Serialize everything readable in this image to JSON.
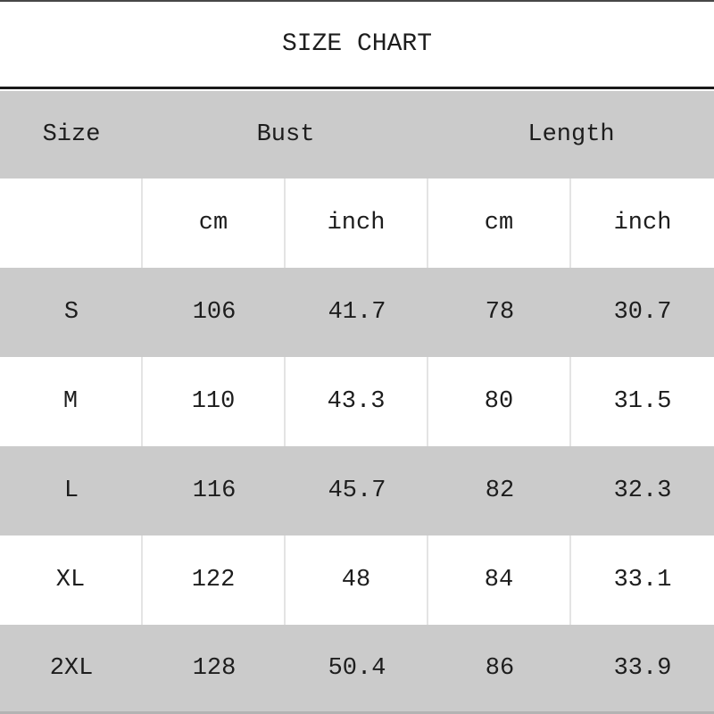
{
  "title": "SIZE CHART",
  "table": {
    "group_headers": {
      "size": "Size",
      "bust": "Bust",
      "length": "Length"
    },
    "unit_row": [
      "",
      "cm",
      "inch",
      "cm",
      "inch"
    ],
    "rows": [
      {
        "size": "S",
        "bust_cm": "106",
        "bust_inch": "41.7",
        "length_cm": "78",
        "length_inch": "30.7"
      },
      {
        "size": "M",
        "bust_cm": "110",
        "bust_inch": "43.3",
        "length_cm": "80",
        "length_inch": "31.5"
      },
      {
        "size": "L",
        "bust_cm": "116",
        "bust_inch": "45.7",
        "length_cm": "82",
        "length_inch": "32.3"
      },
      {
        "size": "XL",
        "bust_cm": "122",
        "bust_inch": "48",
        "length_cm": "84",
        "length_inch": "33.1"
      },
      {
        "size": "2XL",
        "bust_cm": "128",
        "bust_inch": "50.4",
        "length_cm": "86",
        "length_inch": "33.9"
      }
    ]
  },
  "chart_data": {
    "type": "table",
    "title": "SIZE CHART",
    "columns": [
      "Size",
      "Bust cm",
      "Bust inch",
      "Length cm",
      "Length inch"
    ],
    "rows": [
      [
        "S",
        106,
        41.7,
        78,
        30.7
      ],
      [
        "M",
        110,
        43.3,
        80,
        31.5
      ],
      [
        "L",
        116,
        45.7,
        82,
        32.3
      ],
      [
        "XL",
        122,
        48,
        84,
        33.1
      ],
      [
        "2XL",
        128,
        50.4,
        86,
        33.9
      ]
    ]
  },
  "colors": {
    "row_gray": "#cbcbcb",
    "white": "#ffffff",
    "title_divider": "#1a1a1a",
    "column_separator": "#e4e4e4",
    "top_border": "#474747",
    "bottom_edge": "#b3b3b3",
    "text": "#1d1d1d"
  }
}
